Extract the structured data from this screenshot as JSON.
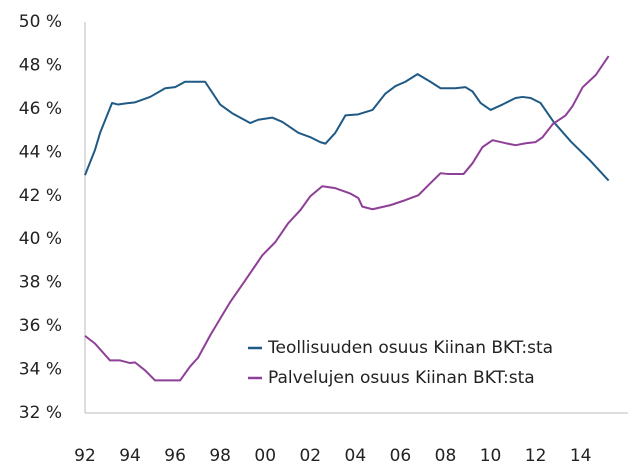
{
  "chart_data": {
    "type": "line",
    "series": [
      {
        "name": "Teollisuuden osuus Kiinan BKT:sta",
        "color": "#1f5a85",
        "x": [
          1992,
          1992.44,
          1992.67,
          1993.2,
          1993.47,
          1993.78,
          1994.22,
          1994.89,
          1995.56,
          1996,
          1996.44,
          1997.33,
          1998,
          1998.53,
          1998.89,
          1999.33,
          1999.69,
          2000.31,
          2000.76,
          2001.47,
          2002,
          2002.44,
          2002.67,
          2003.11,
          2003.56,
          2004.13,
          2004.76,
          2005.33,
          2005.78,
          2006.22,
          2006.76,
          2007.33,
          2007.78,
          2008.44,
          2008.89,
          2009.2,
          2009.56,
          2010,
          2010.53,
          2011.11,
          2011.42,
          2011.78,
          2012.22,
          2012.8,
          2013.56,
          2014.44,
          2015.24
        ],
        "values": [
          42.95,
          44.1,
          44.9,
          46.27,
          46.2,
          46.25,
          46.3,
          46.55,
          46.95,
          47.0,
          47.25,
          47.25,
          46.2,
          45.8,
          45.6,
          45.35,
          45.5,
          45.6,
          45.4,
          44.9,
          44.7,
          44.47,
          44.4,
          44.9,
          45.7,
          45.75,
          45.95,
          46.7,
          47.05,
          47.25,
          47.6,
          47.25,
          46.95,
          46.95,
          47.0,
          46.8,
          46.27,
          45.95,
          46.2,
          46.5,
          46.55,
          46.5,
          46.27,
          45.4,
          44.5,
          43.6,
          42.7
        ]
      },
      {
        "name": "Palvelujen osuus Kiinan BKT:sta",
        "color": "#8e3f98",
        "x": [
          1992,
          1992.44,
          1993.11,
          1993.56,
          1994,
          1994.22,
          1994.67,
          1995.11,
          1996.22,
          1996.67,
          1997.02,
          1997.56,
          1998.09,
          1998.44,
          1999.11,
          1999.87,
          2000.44,
          2001.02,
          2001.56,
          2002,
          2002.53,
          2003.11,
          2003.78,
          2004.13,
          2004.31,
          2004.76,
          2005.56,
          2006.22,
          2006.8,
          2007.33,
          2007.78,
          2008.13,
          2008.8,
          2009.2,
          2009.64,
          2010.09,
          2010.67,
          2011.11,
          2011.56,
          2012,
          2012.31,
          2012.76,
          2013.33,
          2013.64,
          2014.09,
          2014.67,
          2015.24
        ],
        "values": [
          35.55,
          35.2,
          34.42,
          34.42,
          34.3,
          34.33,
          33.96,
          33.5,
          33.5,
          34.15,
          34.55,
          35.58,
          36.5,
          37.1,
          38.1,
          39.26,
          39.86,
          40.74,
          41.34,
          41.98,
          42.44,
          42.35,
          42.1,
          41.9,
          41.5,
          41.38,
          41.57,
          41.8,
          42.03,
          42.58,
          43.04,
          43.0,
          43.0,
          43.5,
          44.24,
          44.56,
          44.42,
          44.33,
          44.42,
          44.47,
          44.7,
          45.3,
          45.7,
          46.13,
          47.0,
          47.56,
          48.43
        ]
      }
    ],
    "xlim": [
      1992,
      2016.1
    ],
    "xticks": [
      {
        "value": 1992,
        "label": "92"
      },
      {
        "value": 1994,
        "label": "94"
      },
      {
        "value": 1996,
        "label": "96"
      },
      {
        "value": 1998,
        "label": "98"
      },
      {
        "value": 2000,
        "label": "00"
      },
      {
        "value": 2002,
        "label": "02"
      },
      {
        "value": 2004,
        "label": "04"
      },
      {
        "value": 2006,
        "label": "06"
      },
      {
        "value": 2008,
        "label": "08"
      },
      {
        "value": 2010,
        "label": "10"
      },
      {
        "value": 2012,
        "label": "12"
      },
      {
        "value": 2014,
        "label": "14"
      }
    ],
    "ylim": [
      32,
      50
    ],
    "yticks": [
      {
        "value": 32,
        "label": "32 %"
      },
      {
        "value": 34,
        "label": "34 %"
      },
      {
        "value": 36,
        "label": "36 %"
      },
      {
        "value": 38,
        "label": "38 %"
      },
      {
        "value": 40,
        "label": "40 %"
      },
      {
        "value": 42,
        "label": "42 %"
      },
      {
        "value": 44,
        "label": "44 %"
      },
      {
        "value": 46,
        "label": "46 %"
      },
      {
        "value": 48,
        "label": "48 %"
      },
      {
        "value": 50,
        "label": "50 %"
      }
    ],
    "grid": false,
    "legend": "lower right"
  }
}
